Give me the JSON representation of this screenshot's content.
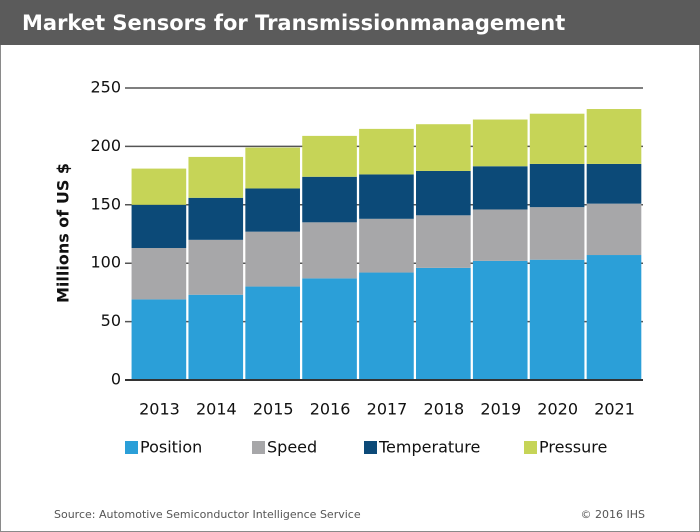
{
  "chart_data": {
    "type": "stacked-bar",
    "title": "Market Sensors for Transmissionmanagement",
    "y_label": "Millions of US $",
    "categories": [
      "2013",
      "2014",
      "2015",
      "2016",
      "2017",
      "2018",
      "2019",
      "2020",
      "2021"
    ],
    "series": [
      {
        "name": "Position",
        "color": "#2b9fd8",
        "values": [
          69,
          73,
          80,
          87,
          92,
          96,
          102,
          103,
          107
        ]
      },
      {
        "name": "Speed",
        "color": "#a7a7a9",
        "values": [
          44,
          47,
          47,
          48,
          46,
          45,
          44,
          45,
          44
        ]
      },
      {
        "name": "Temperature",
        "color": "#0c4a78",
        "values": [
          37,
          36,
          37,
          39,
          38,
          38,
          37,
          37,
          34
        ]
      },
      {
        "name": "Pressure",
        "color": "#c6d457",
        "values": [
          31,
          35,
          35,
          35,
          39,
          40,
          40,
          43,
          47
        ]
      }
    ],
    "ylim": [
      0,
      250
    ],
    "yticks": [
      0,
      50,
      100,
      150,
      200,
      250
    ],
    "grid": true,
    "source": "Source: Automotive Semiconductor Intelligence Service",
    "copyright": "© 2016 IHS"
  }
}
